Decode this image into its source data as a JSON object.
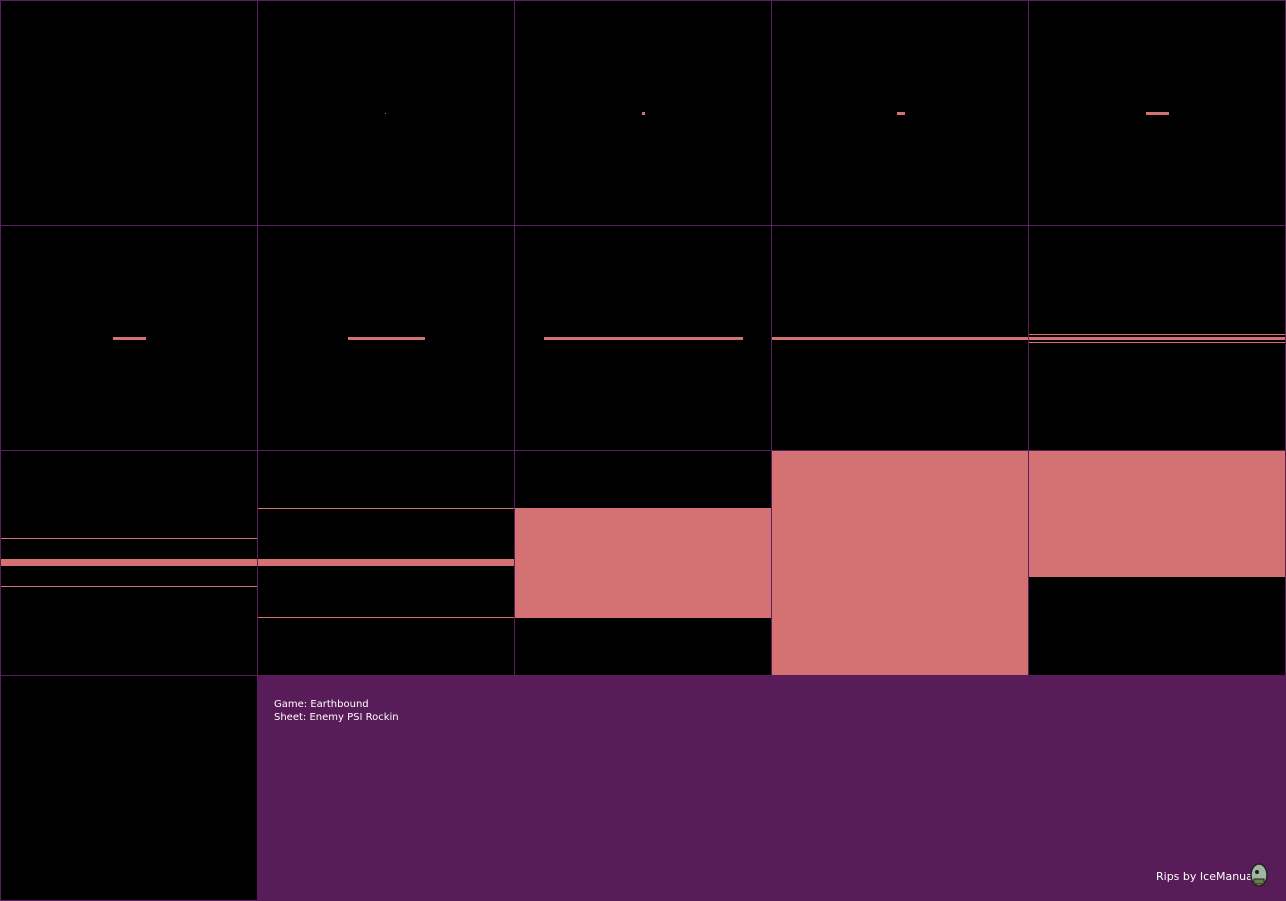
{
  "info": {
    "game": "Game: Earthbound",
    "sheet": "Sheet: Enemy PSI Rockin",
    "credit": "Rips by IceManual"
  }
}
